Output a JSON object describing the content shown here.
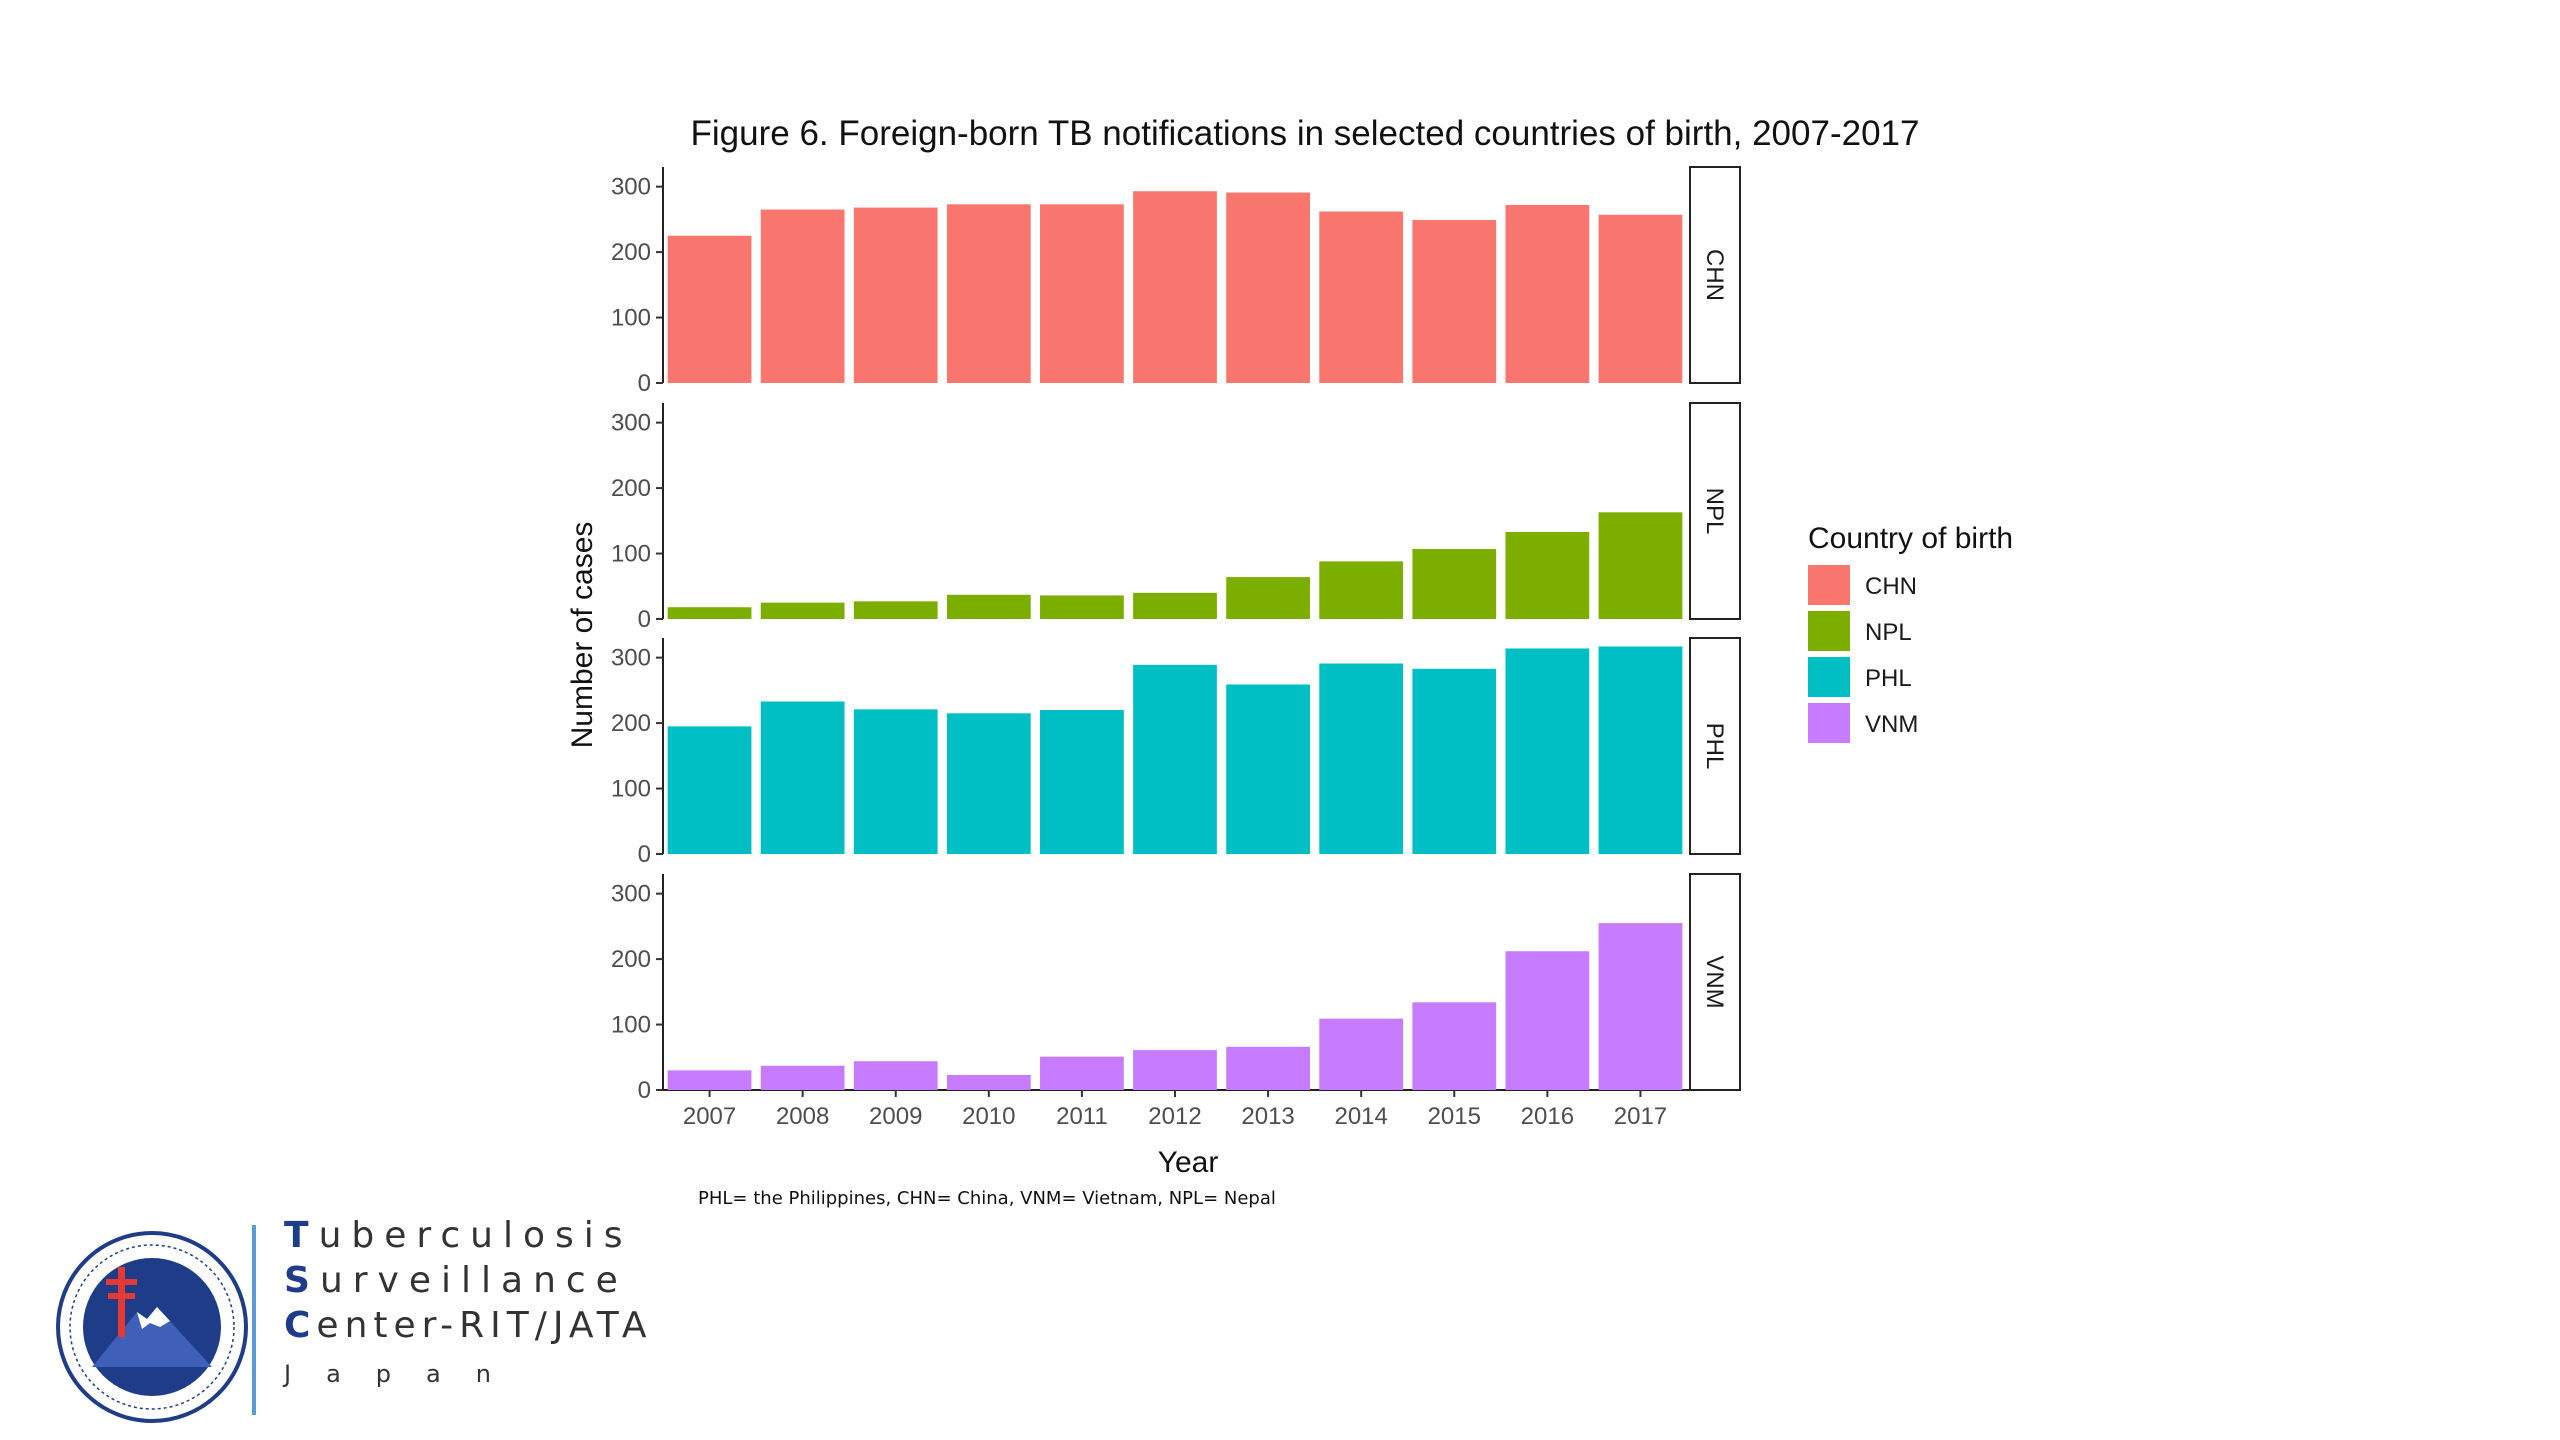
{
  "chart_data": {
    "type": "bar",
    "title": "Figure 6. Foreign-born TB notifications in selected countries of birth, 2007-2017",
    "xlabel": "Year",
    "ylabel": "Number of cases",
    "ylim": [
      0,
      330
    ],
    "yticks": [
      "0",
      "100",
      "200",
      "300"
    ],
    "categories": [
      "2007",
      "2008",
      "2009",
      "2010",
      "2011",
      "2012",
      "2013",
      "2014",
      "2015",
      "2016",
      "2017"
    ],
    "legend_title": "Country of birth",
    "legend_position": "right",
    "grid": false,
    "facets": "rows",
    "series": [
      {
        "name": "CHN",
        "color": "#F8766D",
        "values": [
          225,
          265,
          268,
          273,
          273,
          293,
          291,
          262,
          249,
          272,
          257
        ]
      },
      {
        "name": "NPL",
        "color": "#7CAE00",
        "values": [
          18,
          25,
          27,
          37,
          36,
          40,
          64,
          88,
          107,
          133,
          163
        ]
      },
      {
        "name": "PHL",
        "color": "#00BFC4",
        "values": [
          195,
          233,
          221,
          215,
          220,
          289,
          259,
          291,
          283,
          314,
          317
        ]
      },
      {
        "name": "VNM",
        "color": "#C77CFF",
        "values": [
          30,
          37,
          44,
          23,
          51,
          61,
          66,
          109,
          134,
          212,
          255
        ]
      }
    ],
    "footnote": "PHL= the Philippines, CHN= China, VNM= Vietnam, NPL= Nepal"
  },
  "branding": {
    "line1_initial": "T",
    "line1_rest": "uberculosis",
    "line2_initial": "S",
    "line2_rest": "urveillance",
    "line3_initial": "C",
    "line3_rest": "enter-RIT/JATA",
    "line4": "Japan",
    "seal_color": "#1f3c88",
    "cross_color": "#e53935"
  }
}
